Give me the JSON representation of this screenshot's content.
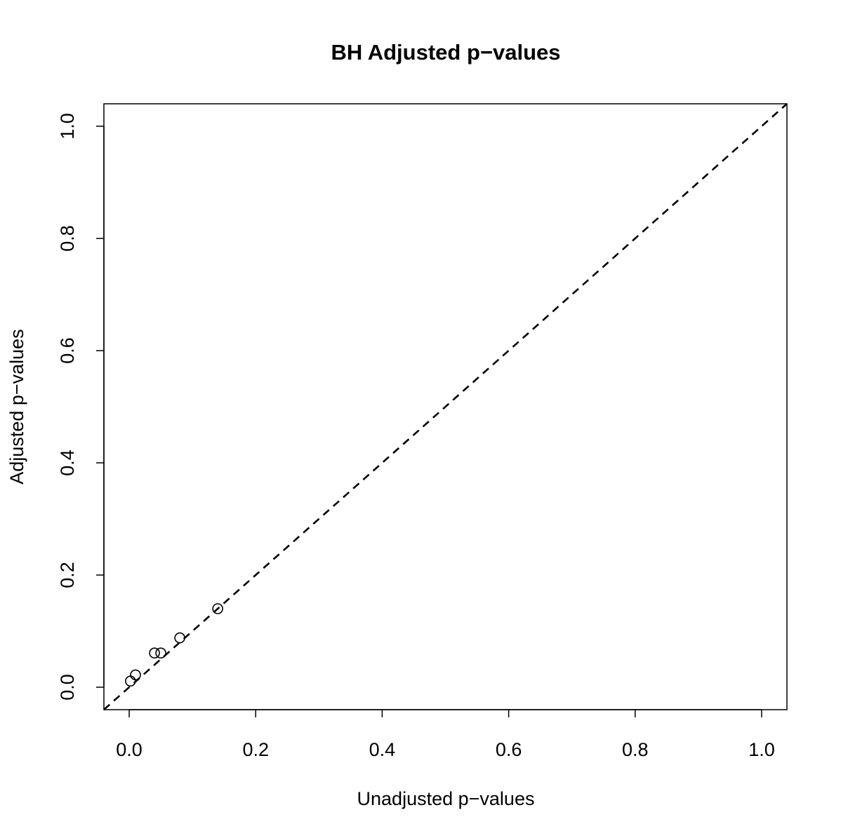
{
  "chart_data": {
    "type": "scatter",
    "title": "BH Adjusted p−values",
    "xlabel": "Unadjusted p−values",
    "ylabel": "Adjusted p−values",
    "xlim": [
      -0.04,
      1.04
    ],
    "ylim": [
      -0.04,
      1.04
    ],
    "xticks": [
      0.0,
      0.2,
      0.4,
      0.6,
      0.8,
      1.0
    ],
    "yticks": [
      0.0,
      0.2,
      0.4,
      0.6,
      0.8,
      1.0
    ],
    "tick_labels": [
      "0.0",
      "0.2",
      "0.4",
      "0.6",
      "0.8",
      "1.0"
    ],
    "grid": false,
    "reference_line": {
      "type": "identity",
      "style": "dashed",
      "color": "#000000"
    },
    "points": [
      {
        "x": 0.002,
        "y": 0.011
      },
      {
        "x": 0.01,
        "y": 0.022
      },
      {
        "x": 0.04,
        "y": 0.061
      },
      {
        "x": 0.05,
        "y": 0.061
      },
      {
        "x": 0.08,
        "y": 0.088
      },
      {
        "x": 0.14,
        "y": 0.14
      }
    ],
    "marker": "open-circle",
    "color": "#000000"
  }
}
